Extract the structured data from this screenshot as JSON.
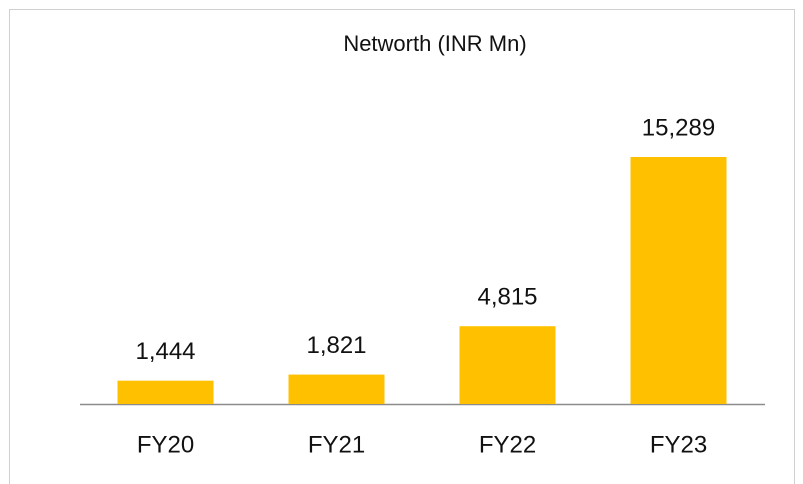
{
  "chart_data": {
    "type": "bar",
    "title": "Networth (INR Mn)",
    "categories": [
      "FY20",
      "FY21",
      "FY22",
      "FY23"
    ],
    "values": [
      1444,
      1821,
      4815,
      15289
    ],
    "value_labels": [
      "1,444",
      "1,821",
      "4,815",
      "15,289"
    ],
    "color": "#ffc000"
  }
}
